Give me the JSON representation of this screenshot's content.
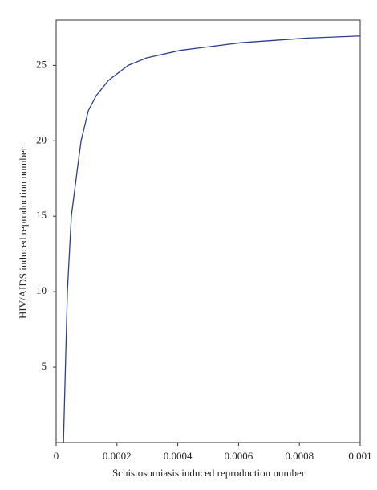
{
  "chart_data": {
    "type": "line",
    "xlabel": "Schistosomiasis induced reproduction number",
    "ylabel": "HIV/AIDS induced reproduction number",
    "x": [
      2.4e-05,
      3.7e-05,
      5e-05,
      6.9e-05,
      8.2e-05,
      0.000106,
      0.000132,
      0.000172,
      0.000237,
      0.000298,
      0.00041,
      0.000607,
      0.00082,
      0.001
    ],
    "series": [
      {
        "color": "#2e3f8f",
        "values": [
          0,
          10,
          15,
          18,
          20,
          22,
          23,
          24,
          25,
          25.5,
          26,
          26.5,
          26.8,
          26.95
        ]
      }
    ],
    "xlim": [
      0,
      0.001
    ],
    "xticks": [
      0,
      0.0002,
      0.0004,
      0.0006,
      0.0008,
      0.001
    ],
    "ylim": [
      0,
      28
    ],
    "yticks": [
      5,
      10,
      15,
      20,
      25
    ]
  }
}
